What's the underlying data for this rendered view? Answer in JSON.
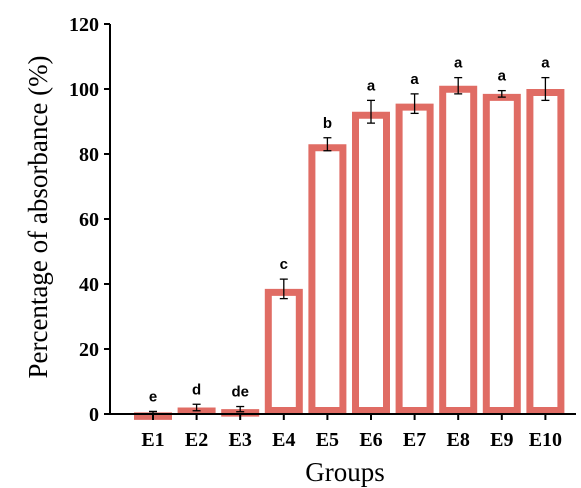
{
  "chart_data": {
    "type": "bar",
    "categories": [
      "E1",
      "E2",
      "E3",
      "E4",
      "E5",
      "E6",
      "E7",
      "E8",
      "E9",
      "E10"
    ],
    "values": [
      0.5,
      2,
      1.5,
      38.5,
      83,
      93,
      95.5,
      101,
      98.5,
      100
    ],
    "errors": [
      0.3,
      1.0,
      0.8,
      3.0,
      2.0,
      3.5,
      3.0,
      2.5,
      1.0,
      3.5
    ],
    "significance": [
      "e",
      "d",
      "de",
      "c",
      "b",
      "a",
      "a",
      "a",
      "a",
      "a"
    ],
    "xlabel": "Groups",
    "ylabel": "Percentage of absorbance (%)",
    "ylim": [
      0,
      120
    ],
    "yticks": [
      0,
      20,
      40,
      60,
      80,
      100,
      120
    ],
    "grid": false,
    "bar_fill": "#ffffff",
    "bar_edge_color": "#e06c64",
    "error_bar_color": "#000000"
  }
}
